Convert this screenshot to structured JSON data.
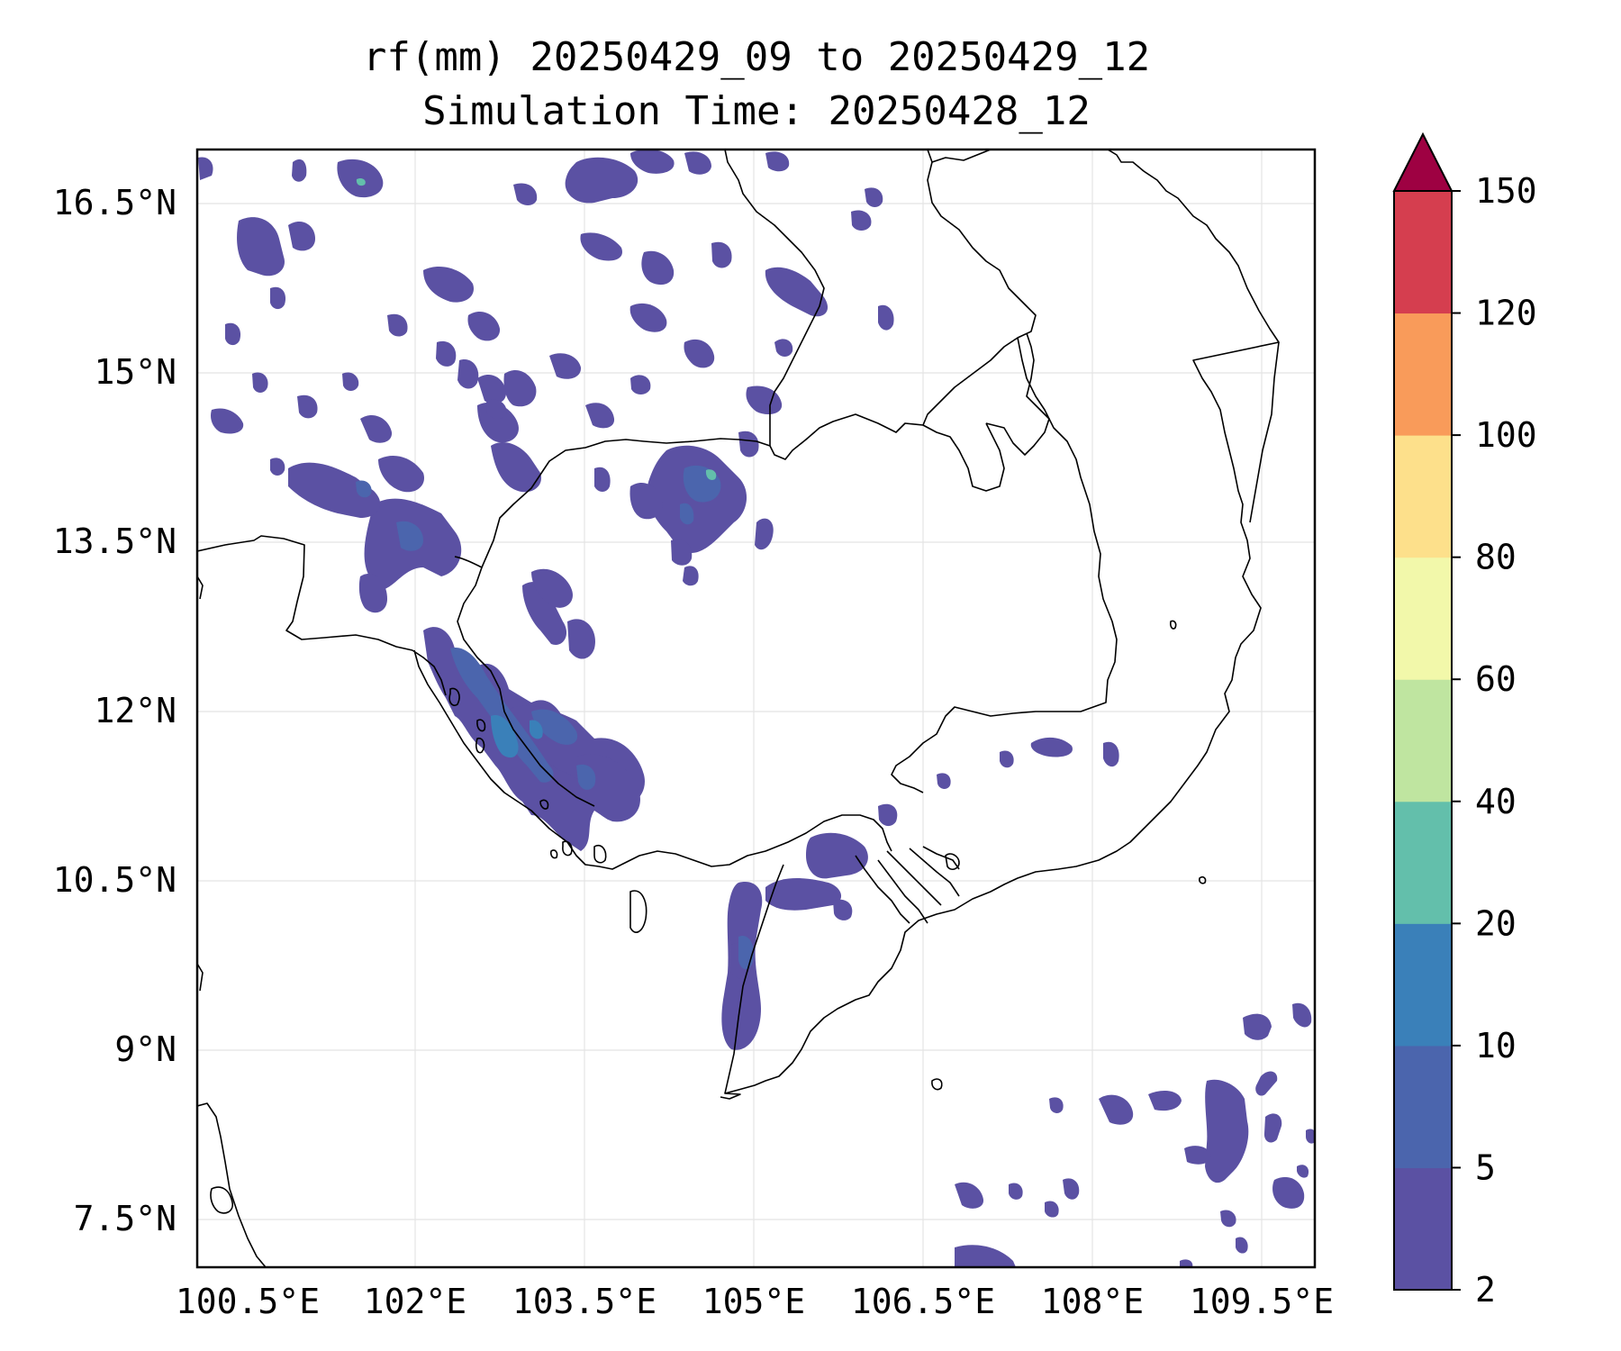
{
  "title": {
    "line1": "rf(mm) 20250429_09 to 20250429_12",
    "line2": "Simulation Time: 20250428_12"
  },
  "map": {
    "lon_range_degE": [
      100.0,
      109.9
    ],
    "lat_range_degN": [
      7.05,
      16.95
    ],
    "x_ticks": [
      "100.5°E",
      "102°E",
      "103.5°E",
      "105°E",
      "106.5°E",
      "108°E",
      "109.5°E"
    ],
    "y_ticks": [
      "16.5°N",
      "15°N",
      "13.5°N",
      "12°N",
      "10.5°N",
      "9°N",
      "7.5°N"
    ],
    "gridlines": true,
    "features": [
      "coastlines",
      "country-borders",
      "rainfall-contours"
    ]
  },
  "colorbar": {
    "levels": [
      "2",
      "5",
      "10",
      "20",
      "40",
      "60",
      "80",
      "100",
      "120",
      "150"
    ],
    "colors": [
      "#5b51a3",
      "#4b65ad",
      "#3a80b9",
      "#63bfab",
      "#bfe5a0",
      "#f2f8aa",
      "#fde08b",
      "#f99b5a",
      "#d53e4f",
      "#9e0142"
    ],
    "extend": "max"
  }
}
